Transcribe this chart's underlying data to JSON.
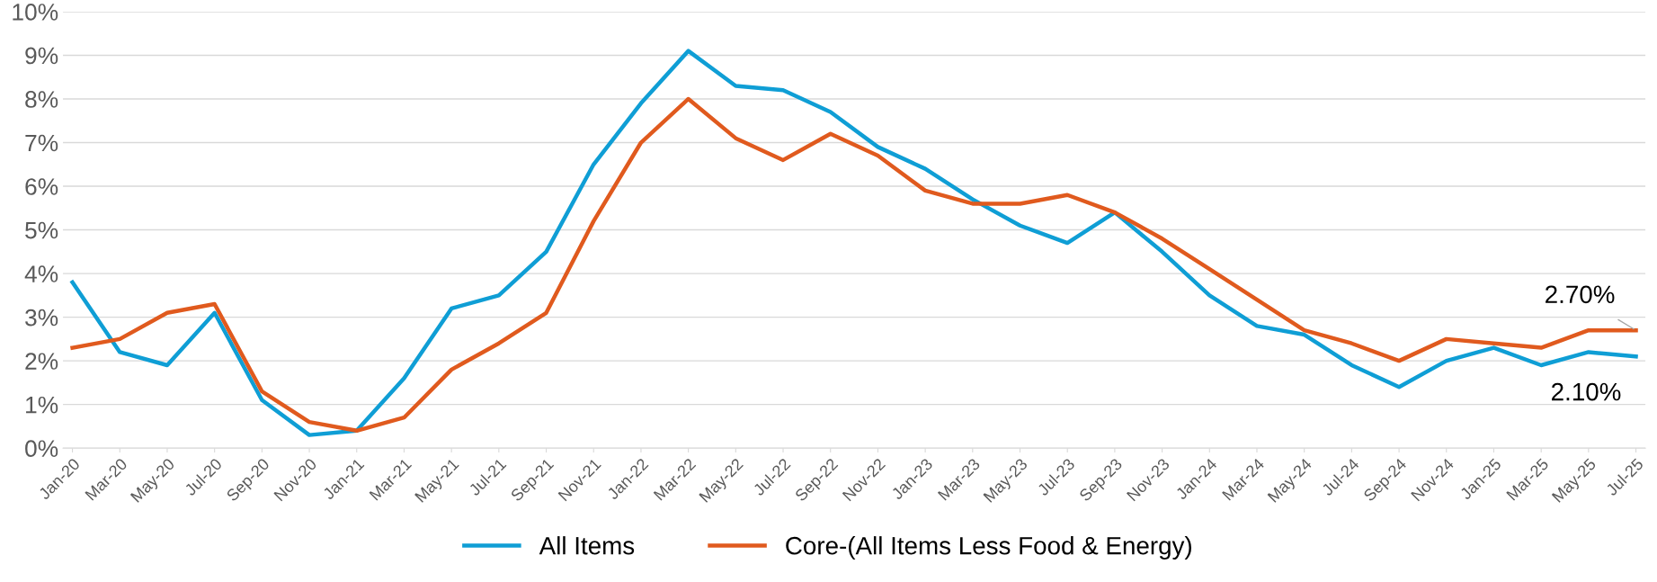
{
  "chart_data": {
    "type": "line",
    "categories": [
      "Jan-20",
      "Mar-20",
      "May-20",
      "Jul-20",
      "Sep-20",
      "Nov-20",
      "Jan-21",
      "Mar-21",
      "May-21",
      "Jul-21",
      "Sep-21",
      "Nov-21",
      "Jan-22",
      "Mar-22",
      "May-22",
      "Jul-22",
      "Sep-22",
      "Nov-22",
      "Jan-23",
      "Mar-23",
      "May-23",
      "Jul-23",
      "Sep-23",
      "Nov-23",
      "Jan-24",
      "Mar-24",
      "May-24",
      "Jul-24",
      "Sep-24",
      "Nov-24",
      "Jan-25",
      "Mar-25",
      "May-25",
      "Jul-25"
    ],
    "series": [
      {
        "name": "All Items",
        "color": "#0f9ed5",
        "values": [
          3.8,
          2.2,
          1.9,
          3.1,
          1.1,
          0.3,
          0.4,
          1.6,
          3.2,
          3.5,
          4.5,
          6.5,
          7.9,
          9.1,
          8.3,
          8.2,
          7.7,
          6.9,
          6.4,
          5.7,
          5.1,
          4.7,
          5.4,
          4.5,
          3.5,
          2.8,
          2.6,
          1.9,
          1.4,
          2.0,
          2.3,
          1.9,
          2.2,
          2.1
        ]
      },
      {
        "name": "Core-(All Items Less Food & Energy)",
        "color": "#e05a1e",
        "values": [
          2.3,
          2.5,
          3.1,
          3.3,
          1.3,
          0.6,
          0.4,
          0.7,
          1.8,
          2.4,
          3.1,
          5.2,
          7.0,
          8.0,
          7.1,
          6.6,
          7.2,
          6.7,
          5.9,
          5.6,
          5.6,
          5.8,
          5.4,
          4.8,
          4.1,
          3.4,
          2.7,
          2.4,
          2.0,
          2.5,
          2.4,
          2.3,
          2.7,
          2.7
        ]
      }
    ],
    "ylim": [
      0,
      10
    ],
    "yticks": [
      {
        "value": 0,
        "label": "0%"
      },
      {
        "value": 1,
        "label": "1%"
      },
      {
        "value": 2,
        "label": "2%"
      },
      {
        "value": 3,
        "label": "3%"
      },
      {
        "value": 4,
        "label": "4%"
      },
      {
        "value": 5,
        "label": "5%"
      },
      {
        "value": 6,
        "label": "6%"
      },
      {
        "value": 7,
        "label": "7%"
      },
      {
        "value": 8,
        "label": "8%"
      },
      {
        "value": 9,
        "label": "9%"
      },
      {
        "value": 10,
        "label": "10%"
      }
    ],
    "annotations": [
      {
        "text": "2.70%",
        "x": "Jul-25",
        "y": 2.7
      },
      {
        "text": "2.10%",
        "x": "Jul-25",
        "y": 2.1
      }
    ],
    "grid": "y",
    "legend": "bottom",
    "marker": "none",
    "line_style": "solid"
  }
}
